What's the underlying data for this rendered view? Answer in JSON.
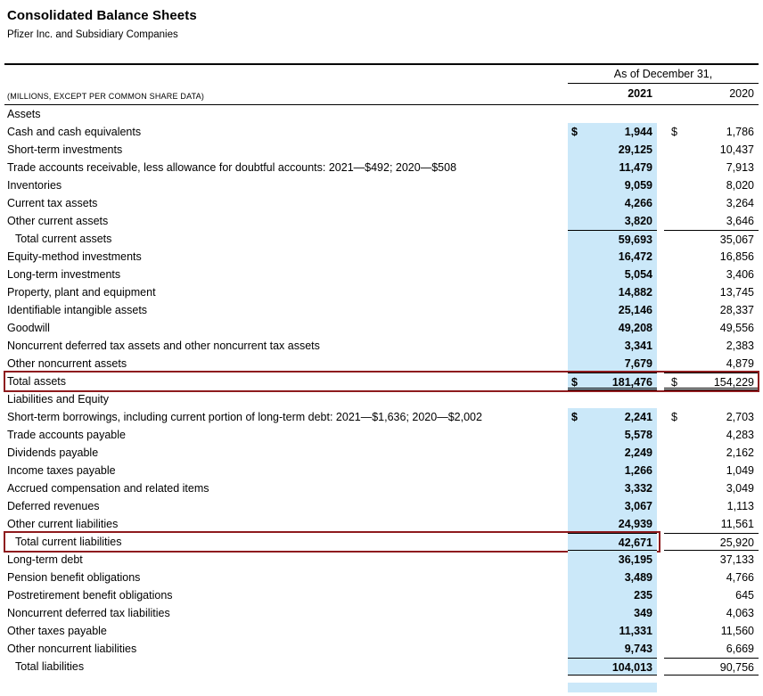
{
  "page": {
    "title": "Consolidated Balance Sheets",
    "subtitle": "Pfizer Inc. and Subsidiary Companies"
  },
  "table": {
    "period_header": "As of December 31,",
    "row_header": "(MILLIONS, EXCEPT PER COMMON SHARE DATA)",
    "col_2021": "2021",
    "col_2020": "2020",
    "highlight_color": "#cbe8f9",
    "annotation_color": "#8e1b1e",
    "rows": [
      {
        "type": "section",
        "label": "Assets"
      },
      {
        "type": "data",
        "label": "Cash and cash equivalents",
        "dollar": true,
        "y2021": "1,944",
        "y2020": "1,786"
      },
      {
        "type": "data",
        "label": "Short-term investments",
        "y2021": "29,125",
        "y2020": "10,437"
      },
      {
        "type": "data",
        "label": "Trade accounts receivable, less allowance for doubtful accounts: 2021—$492; 2020—$508",
        "y2021": "11,479",
        "y2020": "7,913"
      },
      {
        "type": "data",
        "label": "Inventories",
        "y2021": "9,059",
        "y2020": "8,020"
      },
      {
        "type": "data",
        "label": "Current tax assets",
        "y2021": "4,266",
        "y2020": "3,264"
      },
      {
        "type": "data",
        "label": "Other current assets",
        "y2021": "3,820",
        "y2020": "3,646"
      },
      {
        "type": "data",
        "label": "Total current assets",
        "indent": true,
        "line_top": true,
        "y2021": "59,693",
        "y2020": "35,067"
      },
      {
        "type": "data",
        "label": "Equity-method investments",
        "y2021": "16,472",
        "y2020": "16,856"
      },
      {
        "type": "data",
        "label": "Long-term investments",
        "y2021": "5,054",
        "y2020": "3,406"
      },
      {
        "type": "data",
        "label": "Property, plant and equipment",
        "y2021": "14,882",
        "y2020": "13,745"
      },
      {
        "type": "data",
        "label": "Identifiable intangible assets",
        "y2021": "25,146",
        "y2020": "28,337"
      },
      {
        "type": "data",
        "label": "Goodwill",
        "y2021": "49,208",
        "y2020": "49,556"
      },
      {
        "type": "data",
        "label": "Noncurrent deferred tax assets and other noncurrent tax assets",
        "y2021": "3,341",
        "y2020": "2,383"
      },
      {
        "type": "data",
        "label": "Other noncurrent assets",
        "y2021": "7,679",
        "y2020": "4,879"
      },
      {
        "type": "data",
        "label": "Total assets",
        "dollar": true,
        "line_top": true,
        "line_bottom": "double",
        "box": "full",
        "y2021": "181,476",
        "y2020": "154,229"
      },
      {
        "type": "section",
        "label": "Liabilities and Equity"
      },
      {
        "type": "data",
        "label": "Short-term borrowings, including current portion of long-term debt: 2021—$1,636; 2020—$2,002",
        "dollar": true,
        "y2021": "2,241",
        "y2020": "2,703"
      },
      {
        "type": "data",
        "label": "Trade accounts payable",
        "y2021": "5,578",
        "y2020": "4,283"
      },
      {
        "type": "data",
        "label": "Dividends payable",
        "y2021": "2,249",
        "y2020": "2,162"
      },
      {
        "type": "data",
        "label": "Income taxes payable",
        "y2021": "1,266",
        "y2020": "1,049"
      },
      {
        "type": "data",
        "label": "Accrued compensation and related items",
        "y2021": "3,332",
        "y2020": "3,049"
      },
      {
        "type": "data",
        "label": "Deferred revenues",
        "y2021": "3,067",
        "y2020": "1,113"
      },
      {
        "type": "data",
        "label": "Other current liabilities",
        "y2021": "24,939",
        "y2020": "11,561"
      },
      {
        "type": "data",
        "label": "Total current liabilities",
        "indent": true,
        "line_top": true,
        "line_bottom": "single",
        "box": "left",
        "y2021": "42,671",
        "y2020": "25,920"
      },
      {
        "type": "data",
        "label": "Long-term debt",
        "y2021": "36,195",
        "y2020": "37,133"
      },
      {
        "type": "data",
        "label": "Pension benefit obligations",
        "y2021": "3,489",
        "y2020": "4,766"
      },
      {
        "type": "data",
        "label": "Postretirement benefit obligations",
        "y2021": "235",
        "y2020": "645"
      },
      {
        "type": "data",
        "label": "Noncurrent deferred tax liabilities",
        "y2021": "349",
        "y2020": "4,063"
      },
      {
        "type": "data",
        "label": "Other taxes payable",
        "y2021": "11,331",
        "y2020": "11,560"
      },
      {
        "type": "data",
        "label": "Other noncurrent liabilities",
        "y2021": "9,743",
        "y2020": "6,669"
      },
      {
        "type": "data",
        "label": "Total liabilities",
        "indent": true,
        "line_top": true,
        "line_bottom": "single",
        "y2021": "104,013",
        "y2020": "90,756"
      }
    ]
  }
}
